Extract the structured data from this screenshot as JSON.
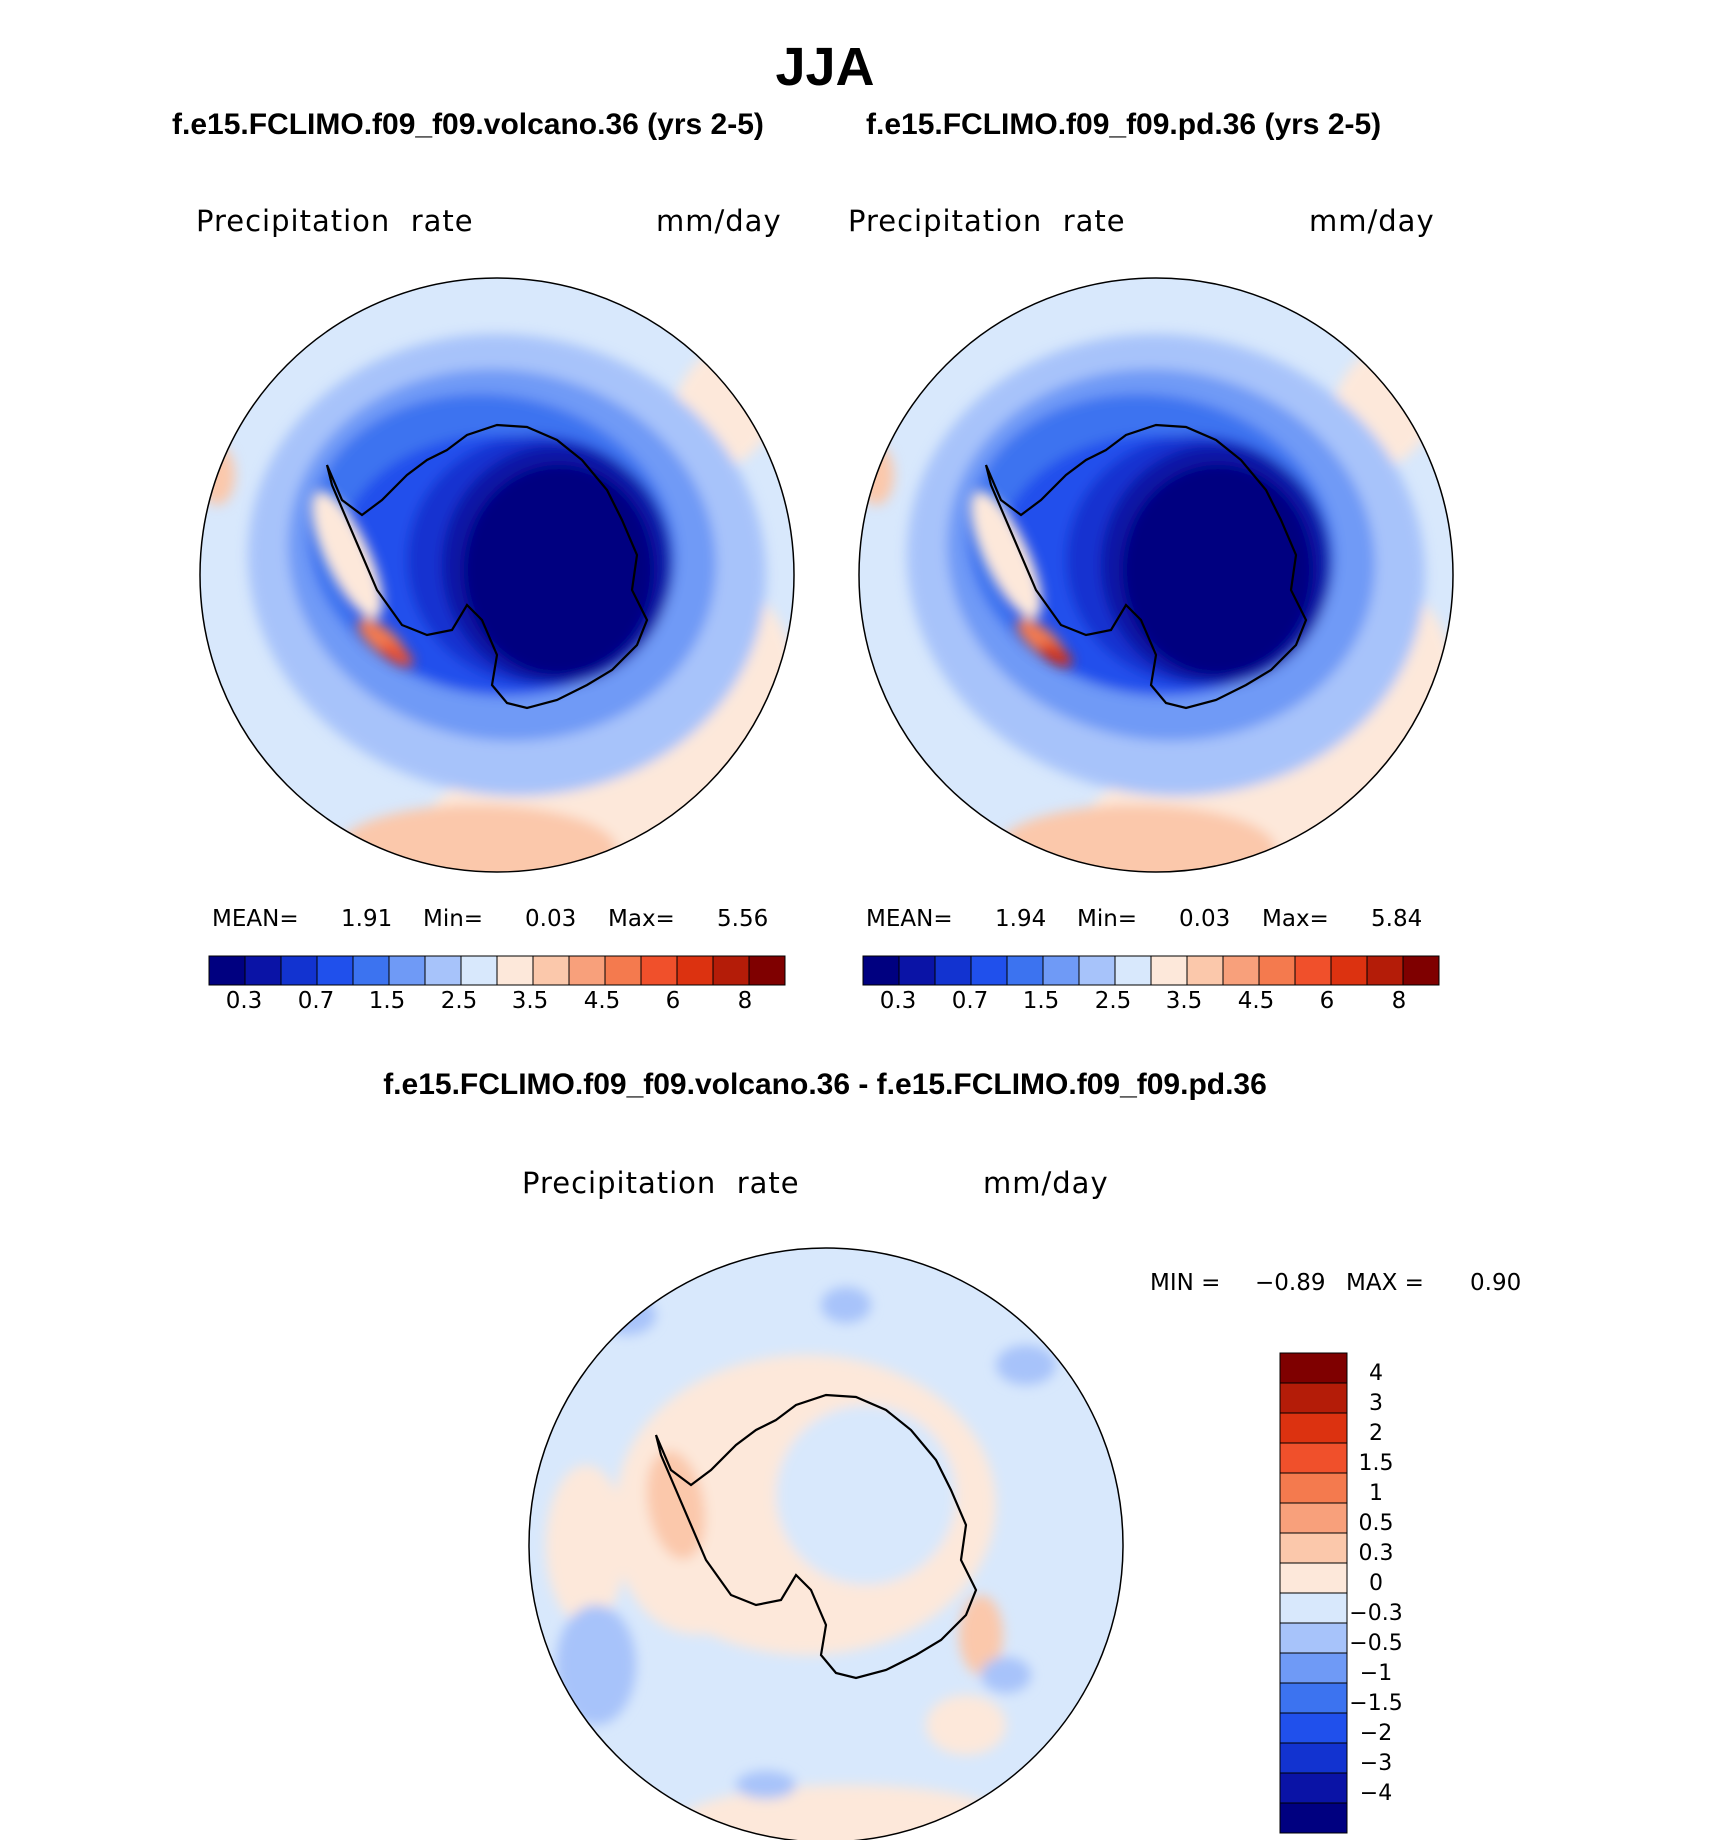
{
  "season": "JJA",
  "panels": {
    "left_title": "f.e15.FCLIMO.f09_f09.volcano.36 (yrs 2-5)",
    "right_title": "f.e15.FCLIMO.f09_f09.pd.36 (yrs 2-5)",
    "diff_title": "f.e15.FCLIMO.f09_f09.volcano.36 - f.e15.FCLIMO.f09_f09.pd.36"
  },
  "variable": {
    "name": "Precipitation  rate",
    "units": "mm/day"
  },
  "left_stats": {
    "mean_label": "MEAN=",
    "mean": "1.91",
    "min_label": "Min=",
    "min": "0.03",
    "max_label": "Max=",
    "max": "5.56"
  },
  "right_stats": {
    "mean_label": "MEAN=",
    "mean": "1.94",
    "min_label": "Min=",
    "min": "0.03",
    "max_label": "Max=",
    "max": "5.84"
  },
  "diff_stats": {
    "min_label": "MIN =",
    "min": "−0.89",
    "max_label": "MAX =",
    "max": "0.90"
  },
  "chart_data": [
    {
      "type": "heatmap",
      "projection": "south-polar-stereographic",
      "title": "f.e15.FCLIMO.f09_f09.volcano.36 (yrs 2-5)",
      "field": "Precipitation rate",
      "units": "mm/day",
      "mean": 1.91,
      "min": 0.03,
      "max": 5.56,
      "contour_levels": [
        0.3,
        0.7,
        1.5,
        2.5,
        3.5,
        4.5,
        6,
        8
      ],
      "colorbar_ticks": [
        "0.3",
        "0.7",
        "1.5",
        "2.5",
        "3.5",
        "4.5",
        "6",
        "8"
      ]
    },
    {
      "type": "heatmap",
      "projection": "south-polar-stereographic",
      "title": "f.e15.FCLIMO.f09_f09.pd.36 (yrs 2-5)",
      "field": "Precipitation rate",
      "units": "mm/day",
      "mean": 1.94,
      "min": 0.03,
      "max": 5.84,
      "contour_levels": [
        0.3,
        0.7,
        1.5,
        2.5,
        3.5,
        4.5,
        6,
        8
      ],
      "colorbar_ticks": [
        "0.3",
        "0.7",
        "1.5",
        "2.5",
        "3.5",
        "4.5",
        "6",
        "8"
      ]
    },
    {
      "type": "heatmap",
      "projection": "south-polar-stereographic",
      "title": "f.e15.FCLIMO.f09_f09.volcano.36 - f.e15.FCLIMO.f09_f09.pd.36",
      "field": "Precipitation rate difference",
      "units": "mm/day",
      "min": -0.89,
      "max": 0.9,
      "contour_levels": [
        -4,
        -3,
        -2,
        -1.5,
        -1,
        -0.5,
        -0.3,
        0,
        0.3,
        0.5,
        1,
        1.5,
        2,
        3,
        4
      ],
      "colorbar_ticks_top_to_bottom": [
        "4",
        "3",
        "2",
        "1.5",
        "1",
        "0.5",
        "0.3",
        "0",
        "−0.3",
        "−0.5",
        "−1",
        "−1.5",
        "−2",
        "−3",
        "−4"
      ]
    }
  ],
  "palette": [
    "#000080",
    "#0a13a6",
    "#1233d0",
    "#2050ec",
    "#3c73f0",
    "#6f9af6",
    "#a7c3fa",
    "#d8e8fc",
    "#fde8da",
    "#fbc8ab",
    "#f8a07b",
    "#f47a4e",
    "#f0502b",
    "#dc3210",
    "#b41c08",
    "#7f0000"
  ]
}
